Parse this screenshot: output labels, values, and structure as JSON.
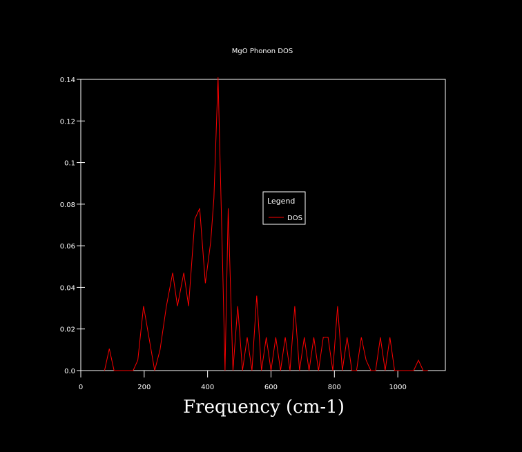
{
  "chart_data": {
    "type": "line",
    "title": "MgO Phonon DOS",
    "xlabel": "Frequency (cm-1)",
    "ylabel": "",
    "xlim": [
      0,
      1150
    ],
    "ylim": [
      0,
      0.14
    ],
    "xticks": [
      0,
      200,
      400,
      600,
      800,
      1000
    ],
    "xtick_labels": [
      "0",
      "200",
      "400",
      "600",
      "800",
      "1000"
    ],
    "yticks": [
      0,
      0.02,
      0.04,
      0.06,
      0.08,
      0.1,
      0.12,
      0.14
    ],
    "ytick_labels": [
      "0.0",
      "0.02",
      "0.04",
      "0.06",
      "0.08",
      "0.1",
      "0.12",
      "0.14"
    ],
    "grid": false,
    "legend": {
      "title": "Legend",
      "position": "center-right"
    },
    "colors": {
      "background": "#000000",
      "axes": "#ffffff",
      "series": "#ff0000"
    },
    "series": [
      {
        "name": "DOS",
        "x": [
          75,
          90,
          105,
          165,
          180,
          198,
          215,
          233,
          250,
          270,
          290,
          305,
          325,
          340,
          360,
          375,
          393,
          410,
          420,
          433,
          448,
          455,
          465,
          480,
          495,
          510,
          525,
          540,
          555,
          570,
          585,
          600,
          615,
          630,
          645,
          660,
          675,
          690,
          705,
          720,
          735,
          750,
          765,
          780,
          795,
          810,
          825,
          840,
          855,
          870,
          885,
          900,
          915,
          930,
          945,
          960,
          975,
          990,
          1005,
          1020,
          1035,
          1050,
          1065,
          1080,
          1095
        ],
        "y": [
          0,
          0.0105,
          0,
          0,
          0.005,
          0.031,
          0.016,
          0,
          0.01,
          0.031,
          0.047,
          0.031,
          0.047,
          0.031,
          0.073,
          0.078,
          0.042,
          0.062,
          0.083,
          0.141,
          0.047,
          0,
          0.078,
          0,
          0.031,
          0,
          0.016,
          0,
          0.036,
          0,
          0.016,
          0,
          0.016,
          0,
          0.016,
          0,
          0.031,
          0,
          0.016,
          0,
          0.016,
          0,
          0.016,
          0.016,
          0,
          0.031,
          0,
          0.016,
          0,
          0,
          0.016,
          0.005,
          0,
          0,
          0.016,
          0,
          0.016,
          0,
          0,
          0,
          0,
          0,
          0.005,
          0,
          0
        ]
      }
    ]
  }
}
